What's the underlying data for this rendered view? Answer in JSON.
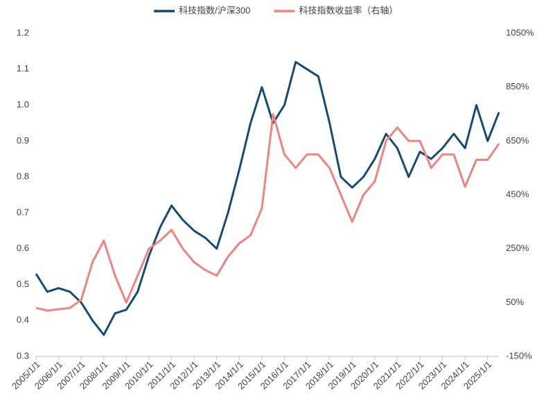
{
  "chart_data": {
    "type": "line",
    "xlim": [
      2005,
      2025.5
    ],
    "xticks": [
      {
        "value": 2005,
        "label": "2005/1/1"
      },
      {
        "value": 2006,
        "label": "2006/1/1"
      },
      {
        "value": 2007,
        "label": "2007/1/1"
      },
      {
        "value": 2008,
        "label": "2008/1/1"
      },
      {
        "value": 2009,
        "label": "2009/1/1"
      },
      {
        "value": 2010,
        "label": "2010/1/1"
      },
      {
        "value": 2011,
        "label": "2011/1/1"
      },
      {
        "value": 2012,
        "label": "2012/1/1"
      },
      {
        "value": 2013,
        "label": "2013/1/1"
      },
      {
        "value": 2014,
        "label": "2014/1/1"
      },
      {
        "value": 2015,
        "label": "2015/1/1"
      },
      {
        "value": 2016,
        "label": "2016/1/1"
      },
      {
        "value": 2017,
        "label": "2017/1/1"
      },
      {
        "value": 2018,
        "label": "2018/1/1"
      },
      {
        "value": 2019,
        "label": "2019/1/1"
      },
      {
        "value": 2020,
        "label": "2020/1/1"
      },
      {
        "value": 2021,
        "label": "2021/1/1"
      },
      {
        "value": 2022,
        "label": "2022/1/1"
      },
      {
        "value": 2023,
        "label": "2023/1/1"
      },
      {
        "value": 2024,
        "label": "2024/1/1"
      },
      {
        "value": 2025,
        "label": "2025/1/1"
      }
    ],
    "ylim": [
      0.3,
      1.2
    ],
    "yticks": [
      {
        "value": 0.3,
        "label": "0.3"
      },
      {
        "value": 0.4,
        "label": "0.4"
      },
      {
        "value": 0.5,
        "label": "0.5"
      },
      {
        "value": 0.6,
        "label": "0.6"
      },
      {
        "value": 0.7,
        "label": "0.7"
      },
      {
        "value": 0.8,
        "label": "0.8"
      },
      {
        "value": 0.9,
        "label": "0.9"
      },
      {
        "value": 1.0,
        "label": "1.0"
      },
      {
        "value": 1.1,
        "label": "1.1"
      },
      {
        "value": 1.2,
        "label": "1.2"
      }
    ],
    "y2lim": [
      -150,
      1050
    ],
    "y2ticks": [
      {
        "value": -150,
        "label": "-150%"
      },
      {
        "value": 50,
        "label": "50%"
      },
      {
        "value": 250,
        "label": "250%"
      },
      {
        "value": 450,
        "label": "450%"
      },
      {
        "value": 650,
        "label": "650%"
      },
      {
        "value": 850,
        "label": "850%"
      },
      {
        "value": 1050,
        "label": "1050%"
      }
    ],
    "legend": "top",
    "x": [
      2005,
      2005.5,
      2006,
      2006.5,
      2007,
      2007.5,
      2008,
      2008.5,
      2009,
      2009.5,
      2010,
      2010.5,
      2011,
      2011.5,
      2012,
      2012.5,
      2013,
      2013.5,
      2014,
      2014.5,
      2015,
      2015.5,
      2016,
      2016.5,
      2017,
      2017.5,
      2018,
      2018.5,
      2019,
      2019.5,
      2020,
      2020.5,
      2021,
      2021.5,
      2022,
      2022.5,
      2023,
      2023.5,
      2024,
      2024.5,
      2025,
      2025.5
    ],
    "series": [
      {
        "name": "科技指数/沪深300",
        "color": "#134b74",
        "values": [
          0.53,
          0.48,
          0.49,
          0.48,
          0.45,
          0.4,
          0.36,
          0.42,
          0.43,
          0.48,
          0.58,
          0.66,
          0.72,
          0.68,
          0.65,
          0.63,
          0.6,
          0.7,
          0.82,
          0.95,
          1.05,
          0.95,
          1.0,
          1.12,
          1.1,
          1.08,
          0.95,
          0.8,
          0.77,
          0.8,
          0.85,
          0.92,
          0.88,
          0.8,
          0.87,
          0.85,
          0.88,
          0.92,
          0.88,
          1.0,
          0.9,
          0.98
        ]
      },
      {
        "name": "科技指数收益率（右轴）",
        "color": "#f4817f",
        "axis": "y2",
        "values": [
          30,
          20,
          25,
          30,
          60,
          200,
          280,
          150,
          50,
          150,
          250,
          280,
          320,
          250,
          200,
          170,
          150,
          220,
          270,
          300,
          400,
          750,
          600,
          550,
          600,
          600,
          550,
          450,
          350,
          450,
          500,
          650,
          700,
          650,
          650,
          550,
          600,
          600,
          480,
          580,
          580,
          640
        ]
      }
    ]
  }
}
